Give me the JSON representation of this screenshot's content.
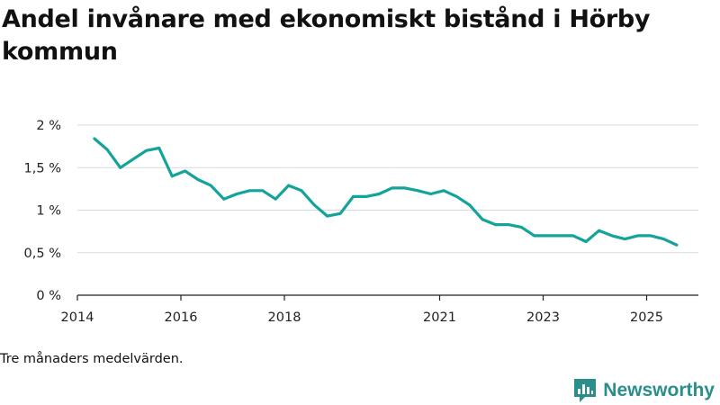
{
  "title": "Andel invånare med ekonomiskt bistånd i Hörby kommun",
  "note": "Tre månaders medelvärden.",
  "brand": {
    "name": "Newsworthy",
    "icon": "newsworthy-logo-icon"
  },
  "colors": {
    "line": "#14a39a",
    "grid": "#d9d9d9",
    "axis": "#222222",
    "brand": "#2a8f8a"
  },
  "chart_data": {
    "type": "line",
    "title": "Andel invånare med ekonomiskt bistånd i Hörby kommun",
    "xlabel": "",
    "ylabel": "",
    "xlim": [
      2014.0,
      2026.0
    ],
    "ylim": [
      0,
      2
    ],
    "grid": true,
    "y_ticks": [
      {
        "value": 0,
        "label": "0 %"
      },
      {
        "value": 0.5,
        "label": "0,5 %"
      },
      {
        "value": 1,
        "label": "1 %"
      },
      {
        "value": 1.5,
        "label": "1,5 %"
      },
      {
        "value": 2,
        "label": "2 %"
      }
    ],
    "x_ticks": [
      {
        "value": 2014.0,
        "label": "2014"
      },
      {
        "value": 2016.0,
        "label": "2016"
      },
      {
        "value": 2018.0,
        "label": "2018"
      },
      {
        "value": 2021.0,
        "label": "2021"
      },
      {
        "value": 2023.0,
        "label": "2023"
      },
      {
        "value": 2025.0,
        "label": "2025"
      }
    ],
    "series": [
      {
        "name": "Andel invånare med ekonomiskt bistånd",
        "x": [
          2014.33,
          2014.58,
          2014.83,
          2015.08,
          2015.33,
          2015.58,
          2015.83,
          2016.08,
          2016.33,
          2016.58,
          2016.83,
          2017.08,
          2017.33,
          2017.58,
          2017.83,
          2018.08,
          2018.33,
          2018.58,
          2018.83,
          2019.08,
          2019.33,
          2019.58,
          2019.83,
          2020.08,
          2020.33,
          2020.58,
          2020.83,
          2021.08,
          2021.33,
          2021.58,
          2021.83,
          2022.08,
          2022.33,
          2022.58,
          2022.83,
          2023.08,
          2023.33,
          2023.58,
          2023.83,
          2024.08,
          2024.33,
          2024.58,
          2024.83,
          2025.08,
          2025.33,
          2025.58
        ],
        "values": [
          1.84,
          1.71,
          1.5,
          1.6,
          1.7,
          1.73,
          1.4,
          1.46,
          1.36,
          1.29,
          1.13,
          1.19,
          1.23,
          1.23,
          1.13,
          1.29,
          1.23,
          1.06,
          0.93,
          0.96,
          1.16,
          1.16,
          1.19,
          1.26,
          1.26,
          1.23,
          1.19,
          1.23,
          1.16,
          1.06,
          0.89,
          0.83,
          0.83,
          0.8,
          0.7,
          0.7,
          0.7,
          0.7,
          0.63,
          0.76,
          0.7,
          0.66,
          0.7,
          0.7,
          0.66,
          0.59
        ]
      }
    ]
  }
}
